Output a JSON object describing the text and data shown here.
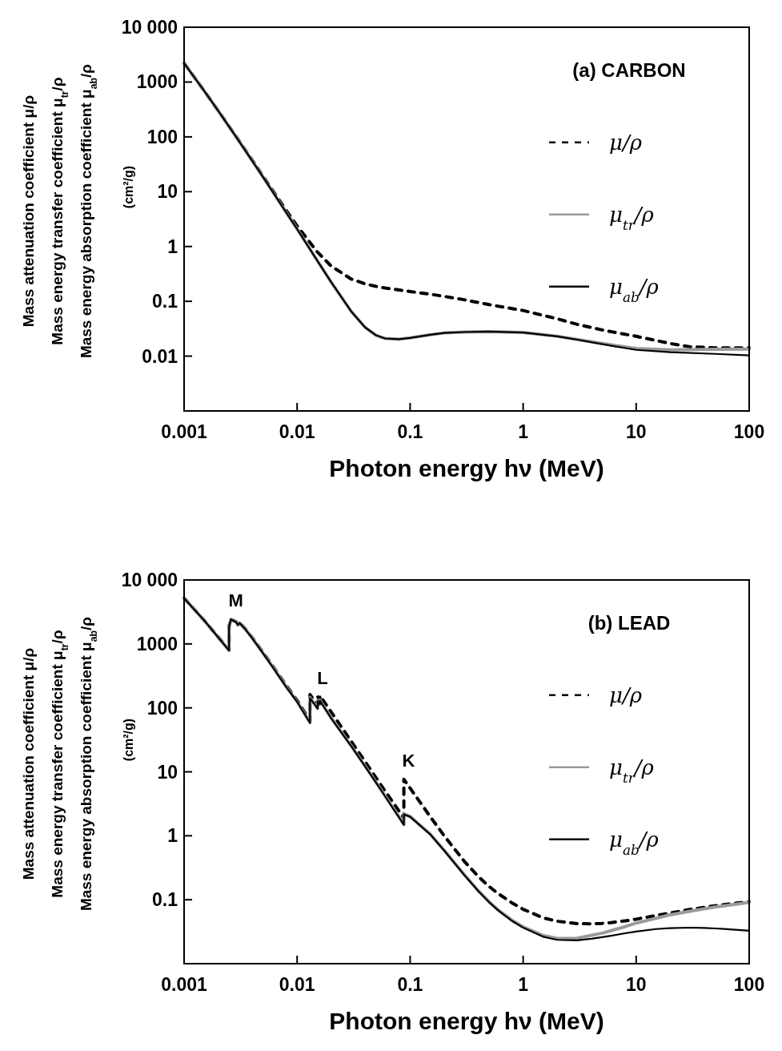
{
  "chart_data": [
    {
      "type": "line",
      "title": "(a) CARBON",
      "xlabel": "Photon energy hν (MeV)",
      "ylabel": "Mass attenuation coefficient  μ/ρ\nMass energy transfer coefficient  μ$_{tr}$/ρ\nMass energy absorption coefficient  μ$_{ab}$/ρ\n(cm²/g)",
      "log": "xy",
      "legend": "right",
      "marker": "none",
      "xlim": [
        0.001,
        100
      ],
      "xticks": [
        0.001,
        0.01,
        0.1,
        1,
        10,
        100
      ],
      "ylim": [
        0.001,
        10000
      ],
      "yticks": [
        {
          "value": 0.001,
          "label": null
        },
        0.01,
        0.1,
        1,
        10,
        100,
        1000,
        {
          "value": 10000,
          "label": "10 000"
        }
      ],
      "series": [
        {
          "name": "μ/ρ",
          "color": "#000000",
          "line_style": "dashed",
          "x": [
            0.001,
            0.0015,
            0.002,
            0.003,
            0.004,
            0.005,
            0.006,
            0.008,
            0.01,
            0.015,
            0.02,
            0.03,
            0.04,
            0.05,
            0.06,
            0.08,
            0.1,
            0.15,
            0.2,
            0.3,
            0.5,
            1,
            2,
            3,
            5,
            10,
            20,
            30,
            50,
            100
          ],
          "values": [
            2211,
            700,
            302,
            90,
            37.8,
            19.1,
            10.9,
            4.58,
            2.37,
            0.81,
            0.44,
            0.256,
            0.208,
            0.187,
            0.175,
            0.161,
            0.151,
            0.135,
            0.123,
            0.107,
            0.087,
            0.068,
            0.048,
            0.038,
            0.03,
            0.023,
            0.017,
            0.0148,
            0.0142,
            0.0141
          ]
        },
        {
          "name": "μ$_{tr}$/ρ",
          "color": "#9a9a9a",
          "line_style": "solid",
          "x": [
            0.001,
            0.0015,
            0.002,
            0.003,
            0.004,
            0.005,
            0.006,
            0.008,
            0.01,
            0.015,
            0.02,
            0.03,
            0.04,
            0.05,
            0.06,
            0.08,
            0.1,
            0.15,
            0.2,
            0.3,
            0.5,
            1,
            2,
            3,
            5,
            10,
            20,
            50,
            100
          ],
          "values": [
            2209,
            699,
            301.6,
            88.6,
            36.6,
            18.4,
            10.4,
            4.2,
            2.08,
            0.563,
            0.224,
            0.066,
            0.0334,
            0.024,
            0.021,
            0.0204,
            0.0215,
            0.0245,
            0.0265,
            0.0275,
            0.028,
            0.027,
            0.023,
            0.0202,
            0.017,
            0.0138,
            0.013,
            0.0133,
            0.0135
          ]
        },
        {
          "name": "μ$_{ab}$/ρ",
          "color": "#000000",
          "line_style": "solid",
          "x": [
            0.001,
            0.0015,
            0.002,
            0.003,
            0.004,
            0.005,
            0.006,
            0.008,
            0.01,
            0.015,
            0.02,
            0.03,
            0.04,
            0.05,
            0.06,
            0.08,
            0.1,
            0.15,
            0.2,
            0.3,
            0.5,
            1,
            2,
            3,
            5,
            10,
            20,
            50,
            100
          ],
          "values": [
            2209,
            699,
            301.6,
            88.6,
            36.6,
            18.4,
            10.4,
            4.2,
            2.08,
            0.563,
            0.224,
            0.066,
            0.0334,
            0.024,
            0.021,
            0.0204,
            0.0215,
            0.0245,
            0.0265,
            0.0275,
            0.028,
            0.027,
            0.023,
            0.02,
            0.0165,
            0.013,
            0.0118,
            0.011,
            0.0103
          ]
        }
      ]
    },
    {
      "type": "line",
      "title": "(b) LEAD",
      "xlabel": "Photon energy hν (MeV)",
      "ylabel": "Mass attenuation coefficient  μ/ρ\nMass energy transfer coefficient  μ$_{tr}$/ρ\nMass energy absorption coefficient  μ$_{ab}$/ρ\n(cm²/g)",
      "log": "xy",
      "legend": "right",
      "marker": "none",
      "xlim": [
        0.001,
        100
      ],
      "xticks": [
        0.001,
        0.01,
        0.1,
        1,
        10,
        100
      ],
      "ylim": [
        0.01,
        10000
      ],
      "yticks": [
        {
          "value": 0.01,
          "label": null
        },
        0.1,
        1,
        10,
        100,
        1000,
        {
          "value": 10000,
          "label": "10 000"
        }
      ],
      "annotations": [
        {
          "text": "M",
          "x": 0.0026,
          "y": 2450
        },
        {
          "text": "L",
          "x": 0.0152,
          "y": 149
        },
        {
          "text": "K",
          "x": 0.088,
          "y": 7.68
        }
      ],
      "series": [
        {
          "name": "μ/ρ",
          "color": "#000000",
          "line_style": "dashed",
          "x": [
            0.001,
            0.0015,
            0.002,
            0.0025,
            0.0025,
            0.0026,
            0.0029,
            0.003,
            0.0031,
            0.0035,
            0.004,
            0.005,
            0.006,
            0.008,
            0.01,
            0.013,
            0.013,
            0.0152,
            0.0152,
            0.0159,
            0.0159,
            0.02,
            0.03,
            0.04,
            0.05,
            0.06,
            0.08,
            0.088,
            0.088,
            0.1,
            0.15,
            0.2,
            0.3,
            0.4,
            0.5,
            0.6,
            0.8,
            1,
            1.5,
            2,
            3,
            4,
            5,
            6,
            8,
            10,
            15,
            20,
            30,
            40,
            50,
            60,
            80,
            100
          ],
          "values": [
            5210,
            2356,
            1285,
            800,
            1900,
            2450,
            2200,
            2000,
            2150,
            1700,
            1260,
            730,
            467,
            224,
            130.6,
            63,
            162,
            108,
            149,
            133,
            155,
            86.4,
            30.3,
            14.4,
            8.04,
            5.02,
            2.42,
            1.91,
            7.68,
            5.55,
            2.01,
            1,
            0.403,
            0.232,
            0.161,
            0.125,
            0.0887,
            0.071,
            0.0522,
            0.0461,
            0.0423,
            0.042,
            0.0427,
            0.0439,
            0.0468,
            0.0497,
            0.0566,
            0.0621,
            0.0704,
            0.0762,
            0.0806,
            0.0841,
            0.0893,
            0.093
          ]
        },
        {
          "name": "μ$_{tr}$/ρ",
          "color": "#9a9a9a",
          "line_style": "solid",
          "x": [
            0.001,
            0.0015,
            0.002,
            0.0025,
            0.0025,
            0.0026,
            0.0029,
            0.003,
            0.0031,
            0.0035,
            0.004,
            0.005,
            0.006,
            0.008,
            0.01,
            0.013,
            0.013,
            0.0152,
            0.0152,
            0.0159,
            0.0159,
            0.02,
            0.03,
            0.04,
            0.05,
            0.06,
            0.08,
            0.088,
            0.088,
            0.1,
            0.15,
            0.2,
            0.3,
            0.4,
            0.5,
            0.6,
            0.8,
            1,
            1.5,
            2,
            3,
            5,
            8,
            10,
            20,
            30,
            50,
            100
          ],
          "values": [
            5200,
            2345,
            1275,
            790,
            1880,
            2430,
            2180,
            1980,
            2130,
            1680,
            1240,
            715,
            455,
            215,
            125,
            59,
            145,
            98,
            130,
            115,
            132,
            70,
            25.6,
            12.3,
            6.85,
            4.22,
            1.95,
            1.5,
            2.2,
            2.01,
            1.07,
            0.595,
            0.249,
            0.139,
            0.0928,
            0.0695,
            0.0476,
            0.0377,
            0.0276,
            0.0248,
            0.025,
            0.03,
            0.038,
            0.043,
            0.058,
            0.066,
            0.077,
            0.091
          ]
        },
        {
          "name": "μ$_{ab}$/ρ",
          "color": "#000000",
          "line_style": "solid",
          "x": [
            0.001,
            0.0015,
            0.002,
            0.0025,
            0.0025,
            0.0026,
            0.0029,
            0.003,
            0.0031,
            0.0035,
            0.004,
            0.005,
            0.006,
            0.008,
            0.01,
            0.013,
            0.013,
            0.0152,
            0.0152,
            0.0159,
            0.0159,
            0.02,
            0.03,
            0.04,
            0.05,
            0.06,
            0.08,
            0.088,
            0.088,
            0.1,
            0.15,
            0.2,
            0.3,
            0.4,
            0.5,
            0.6,
            0.8,
            1,
            1.5,
            2,
            3,
            4,
            5,
            6,
            8,
            10,
            15,
            20,
            30,
            40,
            50,
            60,
            80,
            100
          ],
          "values": [
            5197,
            2344,
            1274,
            789,
            1870,
            2420,
            2170,
            1970,
            2120,
            1670,
            1230,
            710,
            450,
            212,
            124.7,
            58,
            142,
            97,
            128,
            113,
            130,
            69,
            25.4,
            12.1,
            6.74,
            4.15,
            1.92,
            1.48,
            2.16,
            1.98,
            1.06,
            0.587,
            0.246,
            0.137,
            0.0913,
            0.0682,
            0.0464,
            0.0365,
            0.0264,
            0.0236,
            0.0232,
            0.0245,
            0.026,
            0.0274,
            0.0299,
            0.0318,
            0.0348,
            0.036,
            0.0366,
            0.0363,
            0.0356,
            0.035,
            0.0337,
            0.0327
          ]
        }
      ]
    }
  ]
}
